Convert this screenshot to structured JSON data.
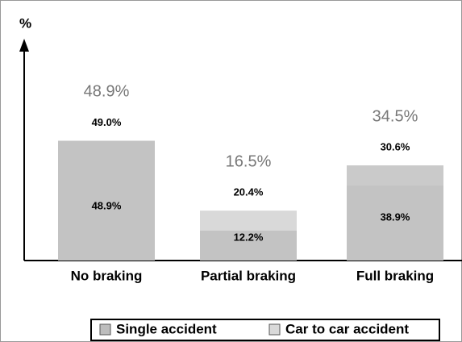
{
  "chart_data": {
    "type": "bar",
    "y_label": "%",
    "categories": [
      "No braking",
      "Partial braking",
      "Full braking"
    ],
    "series": [
      {
        "name": "Single accident",
        "color": "#bdbdbd",
        "values": [
          48.9,
          12.2,
          38.9
        ],
        "value_labels": [
          "48.9%",
          "12.2%",
          "38.9%"
        ]
      },
      {
        "name": "Car to car accident",
        "color": "#d9d9d9",
        "values": [
          49.0,
          20.4,
          30.6
        ],
        "value_labels": [
          "49.0%",
          "20.4%",
          "30.6%"
        ]
      }
    ],
    "totals": [
      48.9,
      16.5,
      34.5
    ],
    "total_labels": [
      "48.9%",
      "16.5%",
      "34.5%"
    ],
    "ylim": [
      0,
      90
    ]
  }
}
